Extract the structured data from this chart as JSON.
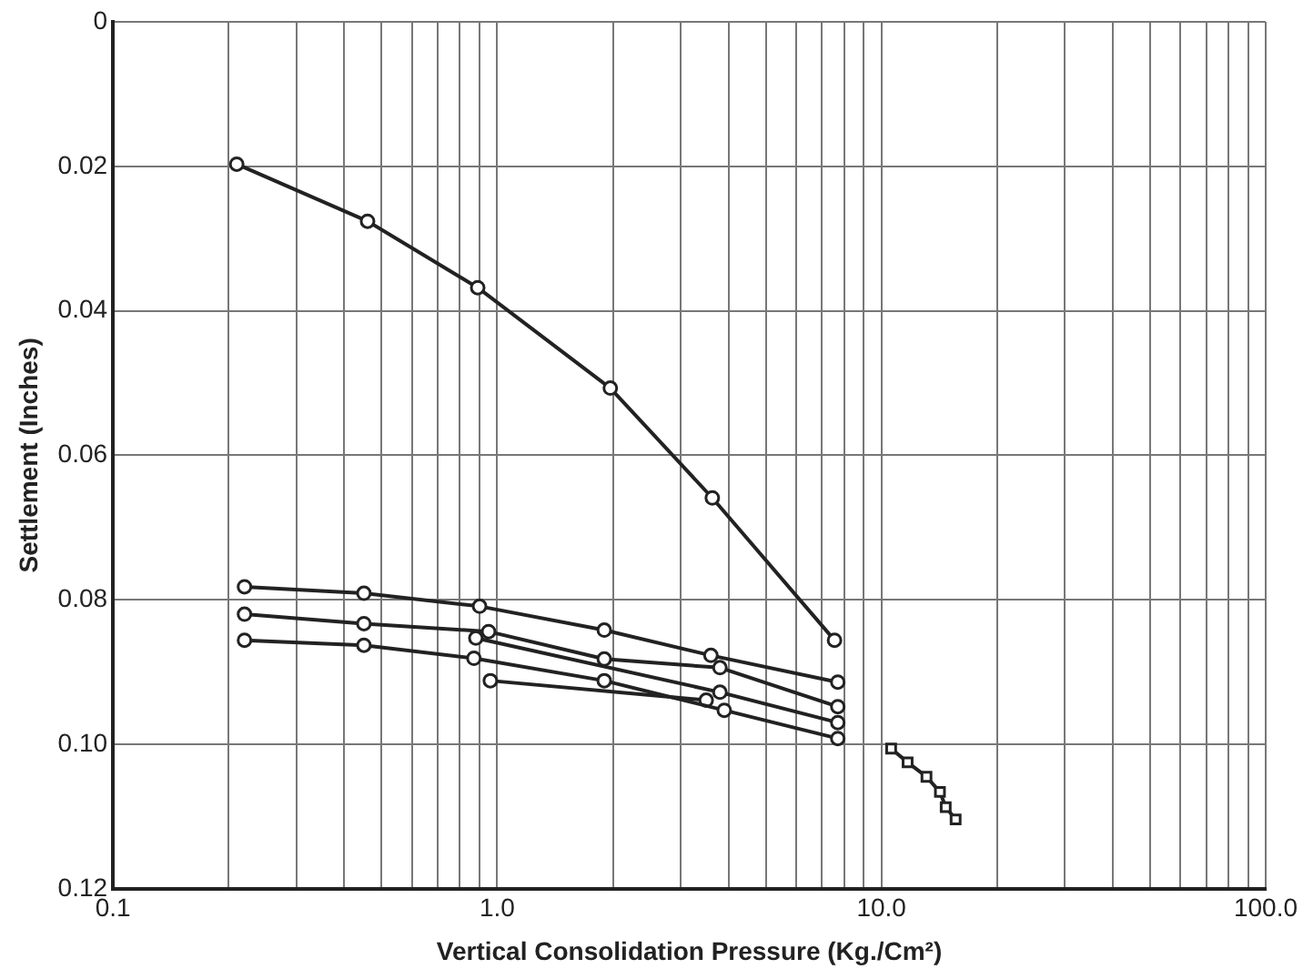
{
  "chart_data": {
    "type": "line",
    "xlabel": "Vertical Consolidation Pressure (Kg./Cm²)",
    "ylabel": "Settlement (Inches)",
    "log": "x",
    "grid": true,
    "legend": false,
    "marker": "circle",
    "line_style": "solid",
    "xlim": [
      0.1,
      100
    ],
    "ylim": [
      0.12,
      0
    ],
    "xticks": [
      0.1,
      {
        "value": 0.2,
        "label": null
      },
      {
        "value": 0.3,
        "label": null
      },
      {
        "value": 0.4,
        "label": null
      },
      {
        "value": 0.5,
        "label": null
      },
      {
        "value": 0.6,
        "label": null
      },
      {
        "value": 0.7,
        "label": null
      },
      {
        "value": 0.8,
        "label": null
      },
      {
        "value": 0.9,
        "label": null
      },
      {
        "value": 1,
        "label": "1.0"
      },
      {
        "value": 2,
        "label": null
      },
      {
        "value": 3,
        "label": null
      },
      {
        "value": 4,
        "label": null
      },
      {
        "value": 5,
        "label": null
      },
      {
        "value": 6,
        "label": null
      },
      {
        "value": 7,
        "label": null
      },
      {
        "value": 8,
        "label": null
      },
      {
        "value": 9,
        "label": null
      },
      {
        "value": 10,
        "label": "10.0"
      },
      {
        "value": 20,
        "label": null
      },
      {
        "value": 30,
        "label": null
      },
      {
        "value": 40,
        "label": null
      },
      {
        "value": 50,
        "label": null
      },
      {
        "value": 60,
        "label": null
      },
      {
        "value": 70,
        "label": null
      },
      {
        "value": 80,
        "label": null
      },
      {
        "value": 90,
        "label": null
      },
      {
        "value": 100,
        "label": "100.0"
      }
    ],
    "yticks": [
      0,
      0.02,
      0.04,
      0.06,
      0.08,
      {
        "value": 0.1,
        "label": "0.10"
      },
      0.12
    ],
    "series": [
      {
        "color": "#222222",
        "x": [
          0.21,
          0.46,
          0.89,
          1.97,
          3.63,
          7.55
        ],
        "values": [
          0.0197,
          0.0276,
          0.0368,
          0.0507,
          0.0659,
          0.0856
        ]
      },
      {
        "color": "#222222",
        "x": [
          0.22,
          0.45,
          0.9,
          1.9,
          3.6,
          7.7
        ],
        "values": [
          0.0782,
          0.0791,
          0.0809,
          0.0842,
          0.0877,
          0.0914
        ]
      },
      {
        "color": "#222222",
        "x": [
          0.22,
          0.45,
          0.95,
          1.9,
          3.8,
          7.7
        ],
        "values": [
          0.082,
          0.0833,
          0.0844,
          0.0882,
          0.0894,
          0.0948
        ]
      },
      {
        "color": "#222222",
        "x": [
          0.22,
          0.45,
          0.87,
          1.9,
          3.9,
          7.7
        ],
        "values": [
          0.0856,
          0.0863,
          0.0881,
          0.0912,
          0.0953,
          0.0992
        ]
      },
      {
        "color": "#222222",
        "x": [
          0.88,
          3.8,
          7.7
        ],
        "values": [
          0.0853,
          0.0928,
          0.097
        ]
      },
      {
        "color": "#222222",
        "x": [
          0.96,
          3.5
        ],
        "values": [
          0.0912,
          0.0939
        ]
      },
      {
        "color": "#222222",
        "marker": "square",
        "x": [
          10.6,
          11.7,
          13.1,
          14.2,
          14.7,
          15.6
        ],
        "values": [
          0.1006,
          0.1025,
          0.1045,
          0.1066,
          0.1087,
          0.1104
        ]
      }
    ]
  }
}
